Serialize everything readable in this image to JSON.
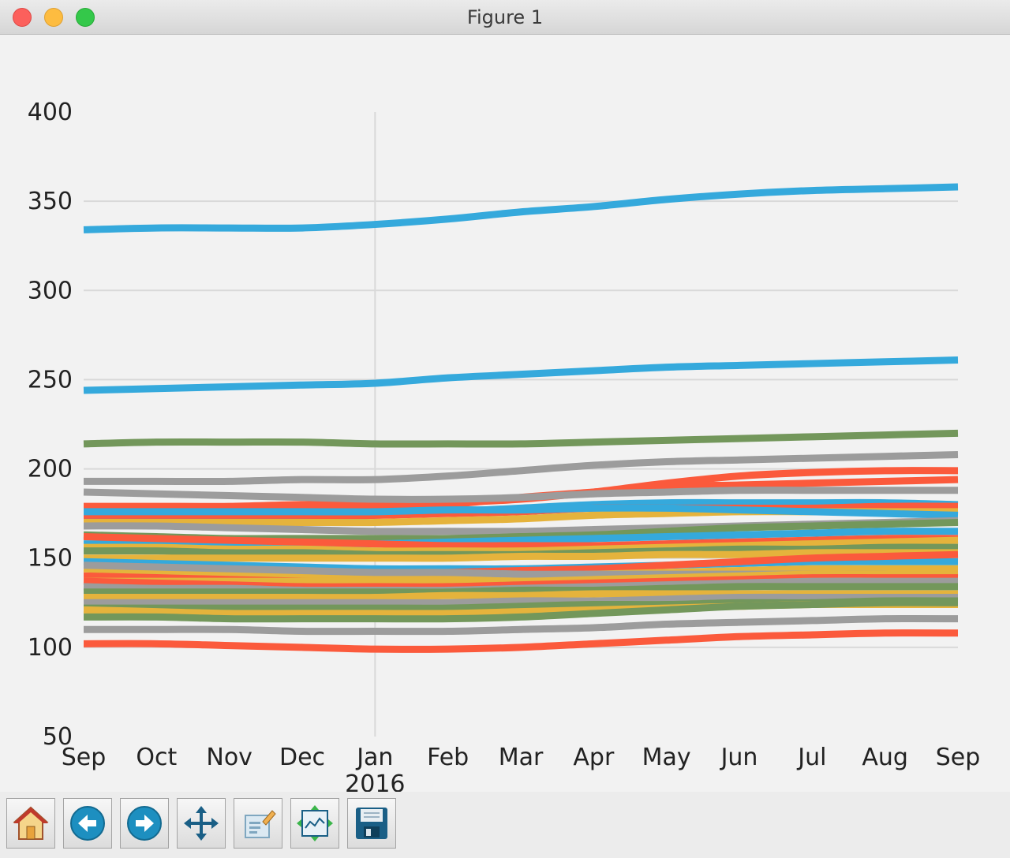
{
  "window": {
    "title": "Figure 1"
  },
  "colors": {
    "blue": "#35a9dc",
    "red": "#fb5a3c",
    "gray": "#9c9c9c",
    "green": "#73975b",
    "yellow": "#e5b33c",
    "grid": "#d9d9d9",
    "background": "#f2f2f2"
  },
  "toolbar": {
    "buttons": [
      {
        "name": "home-button",
        "icon": "home-icon"
      },
      {
        "name": "back-button",
        "icon": "back-arrow-icon"
      },
      {
        "name": "forward-button",
        "icon": "forward-arrow-icon"
      },
      {
        "name": "pan-button",
        "icon": "pan-arrows-icon"
      },
      {
        "name": "zoom-button",
        "icon": "zoom-rect-icon"
      },
      {
        "name": "subplots-button",
        "icon": "subplots-icon"
      },
      {
        "name": "save-button",
        "icon": "save-icon"
      }
    ]
  },
  "chart_data": {
    "type": "line",
    "title": "",
    "xlabel": "",
    "ylabel": "",
    "ylim": [
      50,
      400
    ],
    "yticks": [
      50,
      100,
      150,
      200,
      250,
      300,
      350,
      400
    ],
    "ytick_labels": [
      "50",
      "100",
      "150",
      "200",
      "250",
      "300",
      "350",
      "400"
    ],
    "x": [
      "2015-09",
      "2015-10",
      "2015-11",
      "2015-12",
      "2016-01",
      "2016-02",
      "2016-03",
      "2016-04",
      "2016-05",
      "2016-06",
      "2016-07",
      "2016-08",
      "2016-09"
    ],
    "xtick_labels": [
      "Sep",
      "Oct",
      "Nov",
      "Dec",
      "Jan",
      "Feb",
      "Mar",
      "Apr",
      "May",
      "Jun",
      "Jul",
      "Aug",
      "Sep"
    ],
    "xtick_sublabel": {
      "index": 4,
      "text": "2016"
    },
    "grid": "y",
    "series": [
      {
        "color": "blue",
        "values": [
          334,
          335,
          335,
          335,
          337,
          340,
          344,
          347,
          351,
          354,
          356,
          357,
          358
        ]
      },
      {
        "color": "blue",
        "values": [
          244,
          245,
          246,
          247,
          248,
          251,
          253,
          255,
          257,
          258,
          259,
          260,
          261
        ]
      },
      {
        "color": "green",
        "values": [
          214,
          215,
          215,
          215,
          214,
          214,
          214,
          215,
          216,
          217,
          218,
          219,
          220
        ]
      },
      {
        "color": "gray",
        "values": [
          193,
          193,
          193,
          194,
          194,
          196,
          199,
          202,
          204,
          205,
          206,
          207,
          208
        ]
      },
      {
        "color": "red",
        "values": [
          179,
          179,
          179,
          180,
          180,
          181,
          183,
          187,
          192,
          196,
          198,
          199,
          199
        ]
      },
      {
        "color": "red",
        "values": [
          177,
          177,
          177,
          177,
          178,
          180,
          184,
          187,
          190,
          191,
          192,
          193,
          194
        ]
      },
      {
        "color": "gray",
        "values": [
          187,
          186,
          185,
          184,
          183,
          183,
          184,
          186,
          187,
          188,
          188,
          188,
          188
        ]
      },
      {
        "color": "blue",
        "values": [
          172,
          172,
          172,
          172,
          174,
          176,
          178,
          180,
          181,
          181,
          181,
          181,
          180
        ]
      },
      {
        "color": "red",
        "values": [
          174,
          174,
          174,
          174,
          174,
          175,
          176,
          178,
          178,
          178,
          178,
          179,
          179
        ]
      },
      {
        "color": "yellow",
        "values": [
          170,
          170,
          170,
          170,
          170,
          171,
          172,
          174,
          175,
          176,
          176,
          176,
          176
        ]
      },
      {
        "color": "blue",
        "values": [
          176,
          176,
          176,
          176,
          176,
          177,
          177,
          178,
          178,
          177,
          176,
          175,
          174
        ]
      },
      {
        "color": "gray",
        "values": [
          168,
          168,
          167,
          166,
          165,
          165,
          165,
          166,
          167,
          168,
          169,
          170,
          171
        ]
      },
      {
        "color": "green",
        "values": [
          163,
          162,
          161,
          161,
          161,
          161,
          162,
          163,
          165,
          167,
          168,
          169,
          170
        ]
      },
      {
        "color": "blue",
        "values": [
          158,
          158,
          158,
          158,
          158,
          159,
          160,
          161,
          162,
          163,
          164,
          165,
          165
        ]
      },
      {
        "color": "red",
        "values": [
          162,
          161,
          160,
          159,
          158,
          157,
          157,
          157,
          158,
          159,
          160,
          161,
          161
        ]
      },
      {
        "color": "yellow",
        "values": [
          156,
          156,
          155,
          155,
          154,
          154,
          154,
          155,
          156,
          157,
          158,
          159,
          160
        ]
      },
      {
        "color": "green",
        "values": [
          154,
          154,
          153,
          153,
          152,
          152,
          152,
          153,
          154,
          155,
          155,
          156,
          156
        ]
      },
      {
        "color": "yellow",
        "values": [
          150,
          150,
          150,
          150,
          150,
          150,
          151,
          151,
          152,
          152,
          153,
          153,
          153
        ]
      },
      {
        "color": "blue",
        "values": [
          148,
          147,
          146,
          145,
          144,
          144,
          144,
          145,
          146,
          147,
          148,
          148,
          148
        ]
      },
      {
        "color": "red",
        "values": [
          140,
          140,
          140,
          140,
          141,
          142,
          143,
          144,
          146,
          148,
          150,
          151,
          152
        ]
      },
      {
        "color": "yellow",
        "values": [
          144,
          143,
          142,
          141,
          140,
          140,
          140,
          141,
          142,
          143,
          144,
          144,
          144
        ]
      },
      {
        "color": "gray",
        "values": [
          146,
          145,
          144,
          143,
          142,
          142,
          141,
          141,
          141,
          141,
          141,
          141,
          141
        ]
      },
      {
        "color": "yellow",
        "values": [
          137,
          137,
          137,
          137,
          137,
          137,
          137,
          138,
          139,
          140,
          141,
          141,
          142
        ]
      },
      {
        "color": "red",
        "values": [
          137,
          136,
          135,
          134,
          134,
          134,
          135,
          136,
          137,
          138,
          139,
          139,
          139
        ]
      },
      {
        "color": "gray",
        "values": [
          134,
          133,
          133,
          132,
          132,
          132,
          133,
          134,
          135,
          136,
          137,
          137,
          137
        ]
      },
      {
        "color": "green",
        "values": [
          131,
          131,
          131,
          131,
          131,
          131,
          132,
          132,
          133,
          134,
          134,
          134,
          134
        ]
      },
      {
        "color": "yellow",
        "values": [
          128,
          128,
          128,
          128,
          128,
          129,
          129,
          130,
          130,
          130,
          130,
          130,
          130
        ]
      },
      {
        "color": "gray",
        "values": [
          125,
          125,
          125,
          125,
          125,
          125,
          126,
          126,
          127,
          128,
          128,
          128,
          128
        ]
      },
      {
        "color": "green",
        "values": [
          122,
          122,
          122,
          122,
          122,
          122,
          123,
          124,
          124,
          125,
          125,
          126,
          126
        ]
      },
      {
        "color": "yellow",
        "values": [
          121,
          120,
          119,
          119,
          119,
          119,
          120,
          121,
          122,
          123,
          124,
          124,
          124
        ]
      },
      {
        "color": "green",
        "values": [
          117,
          117,
          116,
          116,
          116,
          116,
          117,
          119,
          121,
          123,
          124,
          125,
          125
        ]
      },
      {
        "color": "gray",
        "values": [
          110,
          110,
          110,
          109,
          109,
          109,
          110,
          111,
          113,
          114,
          115,
          116,
          116
        ]
      },
      {
        "color": "red",
        "values": [
          102,
          102,
          101,
          100,
          99,
          99,
          100,
          102,
          104,
          106,
          107,
          108,
          108
        ]
      }
    ]
  }
}
